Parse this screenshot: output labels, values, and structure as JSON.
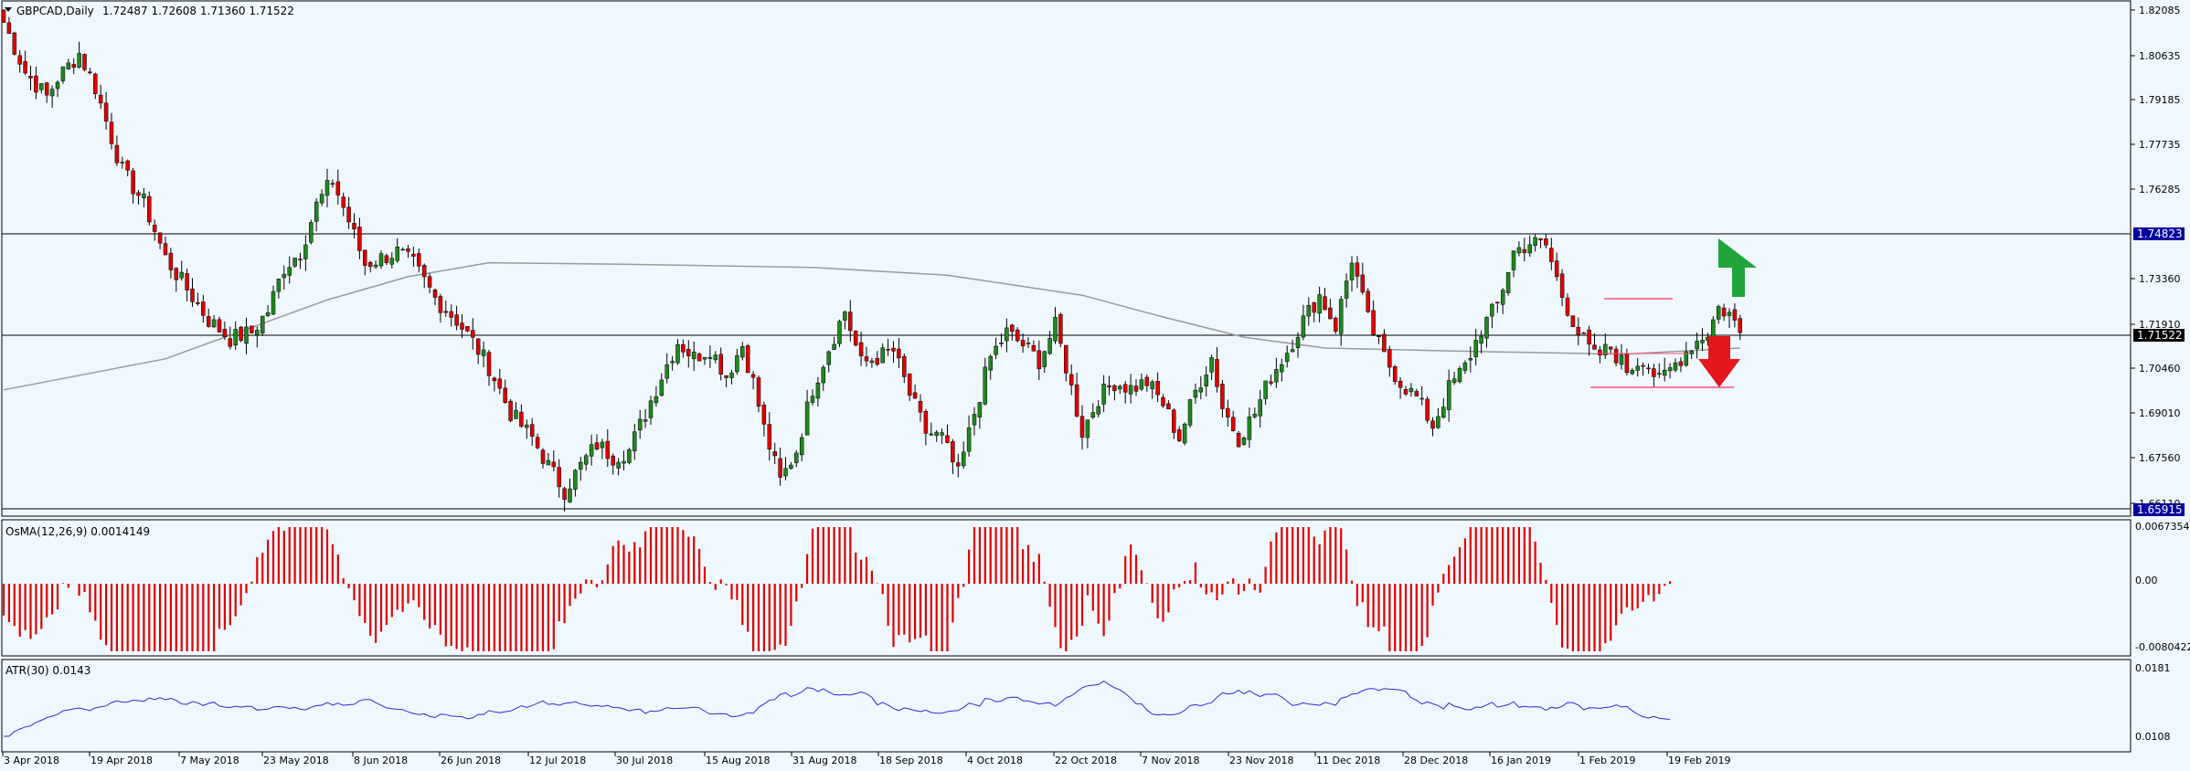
{
  "window": {
    "symbol_line": "GBPCAD,Daily",
    "ohlc_line": "1.72487 1.72608 1.71360 1.71522",
    "collapse_icon": "triangle-down-icon"
  },
  "colors": {
    "background": "#f0f8ff",
    "bull_candle": "#1e8a1e",
    "bear_candle": "#e00000",
    "ma_line": "#9a9a9a",
    "atr_line": "#2b2bd6",
    "osma_bar": "#e00000",
    "price_tag_bg": "#0000a0",
    "up_arrow": "#1fa53a",
    "down_arrow": "#e3171d",
    "range_box": "#ff4f7a"
  },
  "price_axis": {
    "ticks": [
      "1.82085",
      "1.80635",
      "1.79185",
      "1.77735",
      "1.76285",
      "1.74823",
      "1.73360",
      "1.71910",
      "1.71522",
      "1.70460",
      "1.69010",
      "1.67560",
      "1.66110",
      "1.65915"
    ],
    "tag_resistance": "1.74823",
    "tag_current": "1.71522",
    "tag_support": "1.65915"
  },
  "osma_panel": {
    "title": "OsMA(12,26,9) 0.0014149",
    "ticks": [
      "0.0067354",
      "0.00",
      "-0.0080422"
    ]
  },
  "atr_panel": {
    "title": "ATR(30) 0.0143",
    "ticks": [
      "0.0181",
      "0.0108"
    ]
  },
  "time_axis": {
    "labels": [
      "3 Apr 2018",
      "19 Apr 2018",
      "7 May 2018",
      "23 May 2018",
      "8 Jun 2018",
      "26 Jun 2018",
      "12 Jul 2018",
      "30 Jul 2018",
      "15 Aug 2018",
      "31 Aug 2018",
      "18 Sep 2018",
      "4 Oct 2018",
      "22 Oct 2018",
      "7 Nov 2018",
      "23 Nov 2018",
      "11 Dec 2018",
      "28 Dec 2018",
      "16 Jan 2019",
      "1 Feb 2019",
      "19 Feb 2019"
    ]
  },
  "chart_data": {
    "type": "candlestick",
    "symbol": "GBPCAD",
    "timeframe": "Daily",
    "last_bar": {
      "open": 1.72487,
      "high": 1.72608,
      "low": 1.7136,
      "close": 1.71522
    },
    "ylim": [
      1.6585,
      1.8215
    ],
    "horizontal_levels": [
      1.74823,
      1.71522,
      1.65915
    ],
    "close_path": [
      [
        0,
        1.816
      ],
      [
        4,
        1.8
      ],
      [
        8,
        1.792
      ],
      [
        10,
        1.798
      ],
      [
        14,
        1.806
      ],
      [
        17,
        1.795
      ],
      [
        22,
        1.768
      ],
      [
        26,
        1.758
      ],
      [
        30,
        1.74
      ],
      [
        34,
        1.73
      ],
      [
        38,
        1.72
      ],
      [
        42,
        1.714
      ],
      [
        46,
        1.716
      ],
      [
        49,
        1.723
      ],
      [
        52,
        1.737
      ],
      [
        55,
        1.742
      ],
      [
        58,
        1.757
      ],
      [
        61,
        1.765
      ],
      [
        64,
        1.752
      ],
      [
        67,
        1.738
      ],
      [
        70,
        1.74
      ],
      [
        73,
        1.742
      ],
      [
        76,
        1.738
      ],
      [
        80,
        1.727
      ],
      [
        84,
        1.72
      ],
      [
        87,
        1.713
      ],
      [
        90,
        1.705
      ],
      [
        94,
        1.69
      ],
      [
        98,
        1.682
      ],
      [
        101,
        1.673
      ],
      [
        104,
        1.665
      ],
      [
        107,
        1.673
      ],
      [
        110,
        1.68
      ],
      [
        113,
        1.676
      ],
      [
        116,
        1.678
      ],
      [
        119,
        1.69
      ],
      [
        122,
        1.702
      ],
      [
        125,
        1.713
      ],
      [
        128,
        1.708
      ],
      [
        131,
        1.711
      ],
      [
        134,
        1.702
      ],
      [
        137,
        1.712
      ],
      [
        139,
        1.7
      ],
      [
        141,
        1.685
      ],
      [
        144,
        1.668
      ],
      [
        147,
        1.678
      ],
      [
        150,
        1.698
      ],
      [
        153,
        1.711
      ],
      [
        156,
        1.723
      ],
      [
        159,
        1.706
      ],
      [
        162,
        1.708
      ],
      [
        165,
        1.71
      ],
      [
        168,
        1.696
      ],
      [
        171,
        1.684
      ],
      [
        174,
        1.682
      ],
      [
        177,
        1.67
      ],
      [
        180,
        1.69
      ],
      [
        183,
        1.708
      ],
      [
        186,
        1.716
      ],
      [
        189,
        1.712
      ],
      [
        192,
        1.707
      ],
      [
        195,
        1.718
      ],
      [
        197,
        1.705
      ],
      [
        200,
        1.684
      ],
      [
        203,
        1.695
      ],
      [
        206,
        1.7
      ],
      [
        209,
        1.698
      ],
      [
        212,
        1.7
      ],
      [
        215,
        1.693
      ],
      [
        218,
        1.682
      ],
      [
        221,
        1.697
      ],
      [
        224,
        1.708
      ],
      [
        226,
        1.692
      ],
      [
        229,
        1.682
      ],
      [
        232,
        1.69
      ],
      [
        235,
        1.702
      ],
      [
        238,
        1.71
      ],
      [
        241,
        1.72
      ],
      [
        244,
        1.728
      ],
      [
        247,
        1.718
      ],
      [
        250,
        1.74
      ],
      [
        253,
        1.72
      ],
      [
        256,
        1.708
      ],
      [
        259,
        1.7
      ],
      [
        262,
        1.695
      ],
      [
        265,
        1.686
      ],
      [
        268,
        1.698
      ],
      [
        271,
        1.705
      ],
      [
        274,
        1.717
      ],
      [
        277,
        1.725
      ],
      [
        280,
        1.742
      ],
      [
        283,
        1.745
      ],
      [
        286,
        1.744
      ],
      [
        289,
        1.728
      ],
      [
        292,
        1.716
      ],
      [
        295,
        1.708
      ],
      [
        298,
        1.711
      ],
      [
        301,
        1.704
      ],
      [
        304,
        1.708
      ],
      [
        307,
        1.7
      ],
      [
        310,
        1.706
      ],
      [
        313,
        1.712
      ],
      [
        316,
        1.716
      ],
      [
        318,
        1.724
      ],
      [
        320,
        1.722
      ],
      [
        322,
        1.716
      ]
    ],
    "ma_line": [
      [
        0,
        1.6975
      ],
      [
        30,
        1.7075
      ],
      [
        60,
        1.7265
      ],
      [
        75,
        1.734
      ],
      [
        90,
        1.7385
      ],
      [
        115,
        1.738
      ],
      [
        150,
        1.737
      ],
      [
        175,
        1.7345
      ],
      [
        200,
        1.728
      ],
      [
        215,
        1.721
      ],
      [
        230,
        1.7145
      ],
      [
        245,
        1.711
      ],
      [
        270,
        1.71
      ],
      [
        300,
        1.709
      ],
      [
        322,
        1.711
      ]
    ],
    "range_box": {
      "from_bar": 307,
      "to_bar": 324,
      "top": 1.7265,
      "bottom": 1.699,
      "mid": 1.709
    }
  }
}
